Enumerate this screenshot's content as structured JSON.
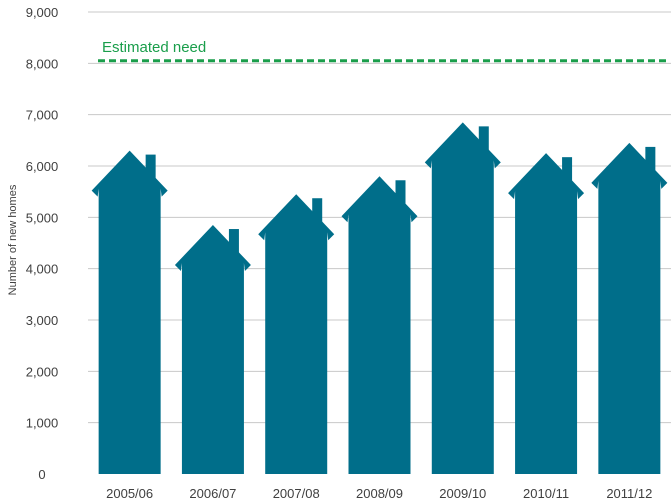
{
  "chart_data": {
    "type": "bar",
    "title": "",
    "xlabel": "",
    "ylabel": "Number of new homes",
    "categories": [
      "2005/06",
      "2006/07",
      "2007/08",
      "2008/09",
      "2009/10",
      "2010/11",
      "2011/12"
    ],
    "values": [
      6300,
      4850,
      5450,
      5800,
      6850,
      6250,
      6450
    ],
    "ylim": [
      0,
      9000
    ],
    "yticks": [
      "0",
      "1,000",
      "2,000",
      "3,000",
      "4,000",
      "5,000",
      "6,000",
      "7,000",
      "8,000",
      "9,000"
    ],
    "ytick_values": [
      0,
      1000,
      2000,
      3000,
      4000,
      5000,
      6000,
      7000,
      8000,
      9000
    ],
    "grid": true,
    "bar_shape": "house",
    "reference_line": {
      "label": "Estimated need",
      "value": 8050,
      "style": "dashed"
    },
    "colors": {
      "bar": "#006e8a",
      "reference": "#1a9e4b",
      "grid": "#c8c8c8",
      "text": "#404040"
    }
  }
}
